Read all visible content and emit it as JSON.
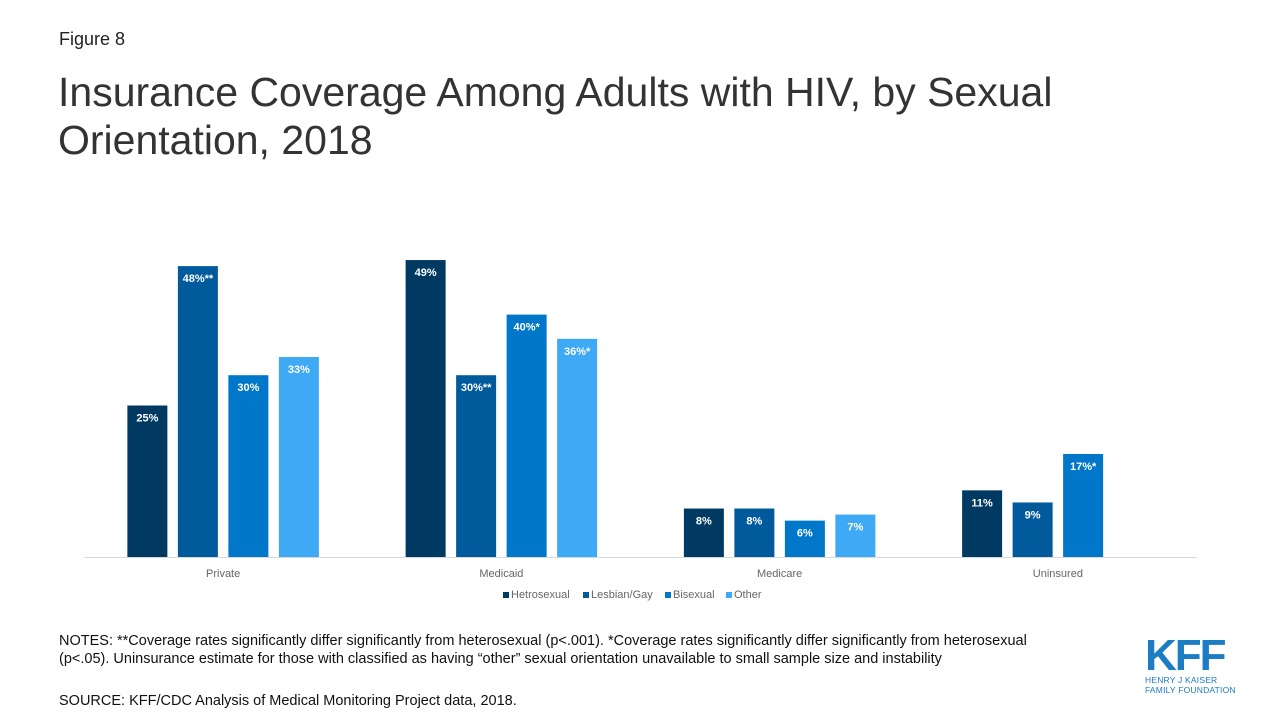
{
  "figure_label": "Figure 8",
  "title": "Insurance Coverage Among Adults with HIV, by Sexual Orientation, 2018",
  "notes": "NOTES: **Coverage rates significantly differ significantly from heterosexual (p<.001). *Coverage rates significantly differ significantly from heterosexual (p<.05). Uninsurance estimate for those with classified as having “other” sexual orientation unavailable to small sample size and instability",
  "source": "SOURCE: KFF/CDC Analysis of Medical Monitoring Project data, 2018.",
  "logo": {
    "mark": "KFF",
    "line1": "HENRY J KAISER",
    "line2": "FAMILY FOUNDATION",
    "color": "#1b7dc4"
  },
  "chart_data": {
    "type": "bar",
    "title": "Insurance Coverage Among Adults with HIV, by Sexual Orientation, 2018",
    "xlabel": "",
    "ylabel": "",
    "ylim": [
      0,
      50
    ],
    "grid": false,
    "legend_position": "bottom",
    "categories": [
      "Private",
      "Medicaid",
      "Medicare",
      "Uninsured"
    ],
    "series": [
      {
        "name": "Hetrosexual",
        "color": "#003a63",
        "values": [
          25,
          49,
          8,
          11
        ],
        "labels": [
          "25%",
          "49%",
          "8%",
          "11%"
        ]
      },
      {
        "name": "Lesbian/Gay",
        "color": "#005a9c",
        "values": [
          48,
          30,
          8,
          9
        ],
        "labels": [
          "48%**",
          "30%**",
          "8%",
          "9%"
        ]
      },
      {
        "name": "Bisexual",
        "color": "#0077c8",
        "values": [
          30,
          40,
          6,
          17
        ],
        "labels": [
          "30%",
          "40%*",
          "6%",
          "17%*"
        ]
      },
      {
        "name": "Other",
        "color": "#3ea9f5",
        "values": [
          33,
          36,
          7,
          null
        ],
        "labels": [
          "33%",
          "36%*",
          "7%",
          ""
        ]
      }
    ]
  }
}
